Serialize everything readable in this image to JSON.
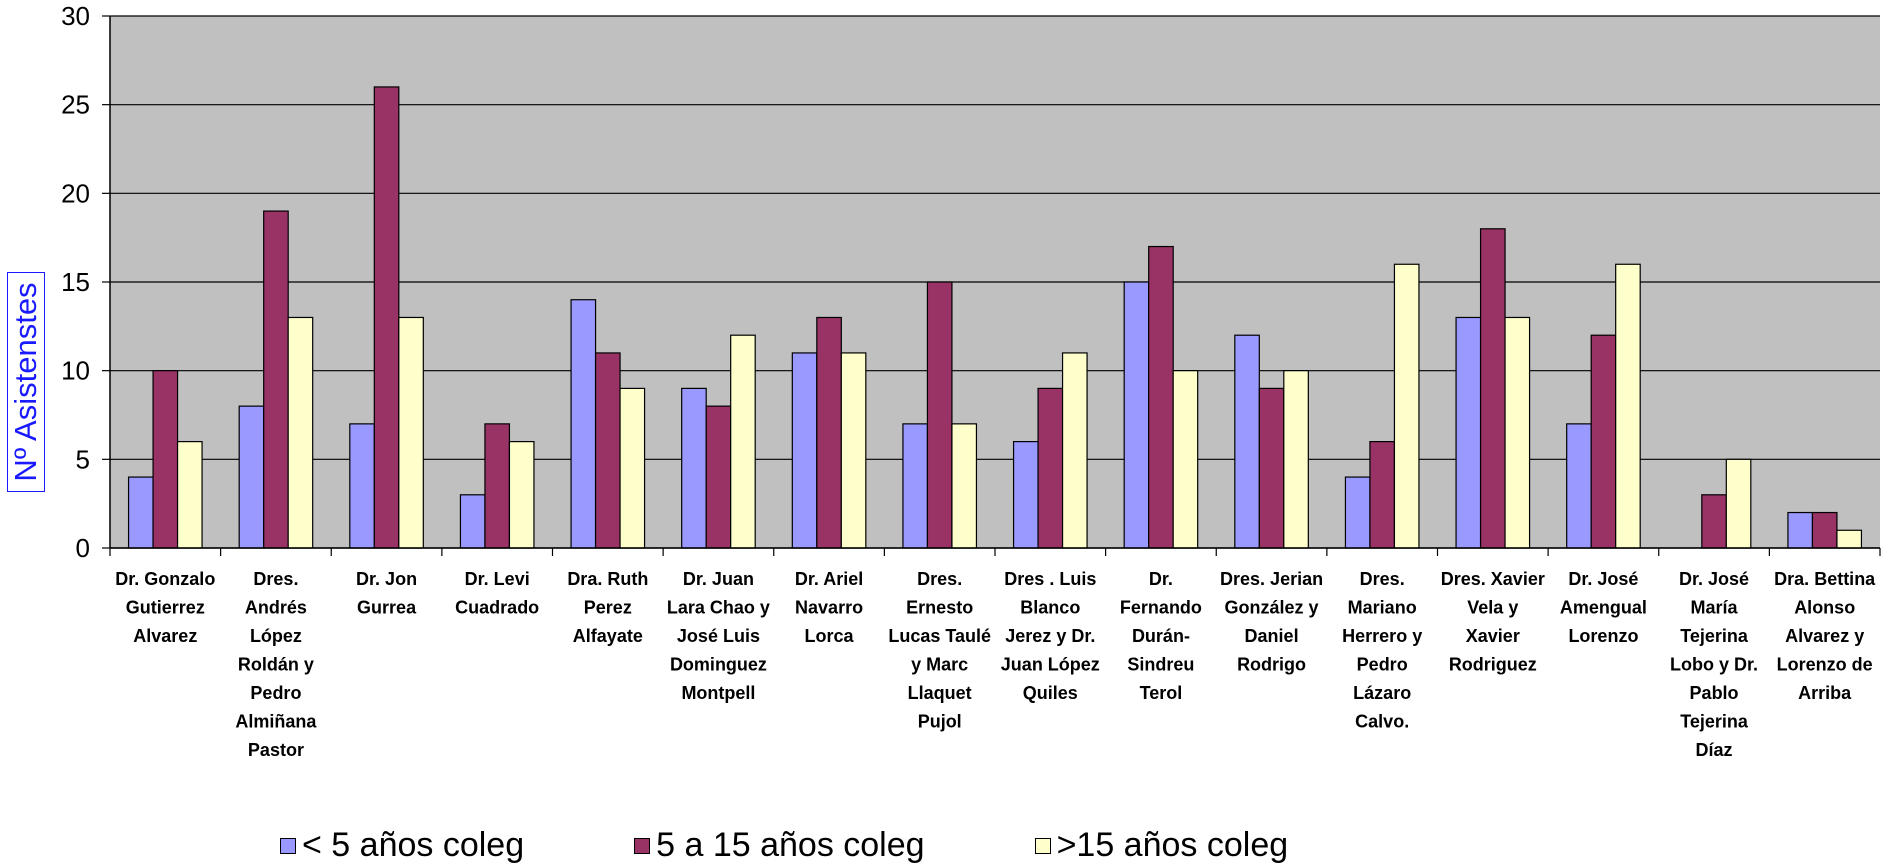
{
  "chart_data": {
    "type": "bar",
    "ylabel": "Nº Asistenstes",
    "ylim": [
      0,
      30
    ],
    "yticks": [
      "0",
      "5",
      "10",
      "15",
      "20",
      "25",
      "30"
    ],
    "grid": true,
    "legend_position": "bottom",
    "categories": [
      [
        "Dr. Gonzalo",
        "Gutierrez",
        "Alvarez"
      ],
      [
        "Dres.",
        "Andrés",
        "López",
        "Roldán y",
        "Pedro",
        "Almiñana",
        "Pastor"
      ],
      [
        "Dr. Jon",
        "Gurrea"
      ],
      [
        "Dr. Levi",
        "Cuadrado"
      ],
      [
        "Dra. Ruth",
        "Perez",
        "Alfayate"
      ],
      [
        "Dr. Juan",
        "Lara Chao y",
        "José Luis",
        "Dominguez",
        "Montpell"
      ],
      [
        "Dr. Ariel",
        "Navarro",
        "Lorca"
      ],
      [
        "Dres.",
        "Ernesto",
        "Lucas Taulé",
        "y Marc",
        "Llaquet",
        "Pujol"
      ],
      [
        "Dres . Luis",
        "Blanco",
        "Jerez y Dr.",
        "Juan López",
        "Quiles"
      ],
      [
        "Dr.",
        "Fernando",
        "Durán-",
        "Sindreu",
        "Terol"
      ],
      [
        "Dres. Jerian",
        "González y",
        "Daniel",
        "Rodrigo"
      ],
      [
        "Dres.",
        "Mariano",
        "Herrero y",
        "Pedro",
        "Lázaro",
        "Calvo."
      ],
      [
        "Dres. Xavier",
        "Vela  y",
        "Xavier",
        "Rodriguez"
      ],
      [
        "Dr. José",
        "Amengual",
        "Lorenzo"
      ],
      [
        "Dr. José",
        "María",
        "Tejerina",
        "Lobo y Dr.",
        "Pablo",
        "Tejerina",
        "Díaz"
      ],
      [
        "Dra. Bettina",
        "Alonso",
        "Alvarez y",
        "Lorenzo de",
        "Arriba"
      ]
    ],
    "series": [
      {
        "name": "< 5 años coleg",
        "color": "#9999ff",
        "values": [
          4,
          8,
          7,
          3,
          14,
          9,
          11,
          7,
          6,
          15,
          12,
          4,
          13,
          7,
          0,
          2
        ]
      },
      {
        "name": "5 a 15 años coleg",
        "color": "#993366",
        "values": [
          10,
          19,
          26,
          7,
          11,
          8,
          13,
          15,
          9,
          17,
          9,
          6,
          18,
          12,
          3,
          2
        ]
      },
      {
        "name": ">15 años coleg",
        "color": "#ffffcc",
        "values": [
          6,
          13,
          13,
          6,
          9,
          12,
          11,
          7,
          11,
          10,
          10,
          16,
          13,
          16,
          5,
          1
        ]
      }
    ],
    "plot_background": "#c0c0c0",
    "bar_outline": "#000000"
  }
}
